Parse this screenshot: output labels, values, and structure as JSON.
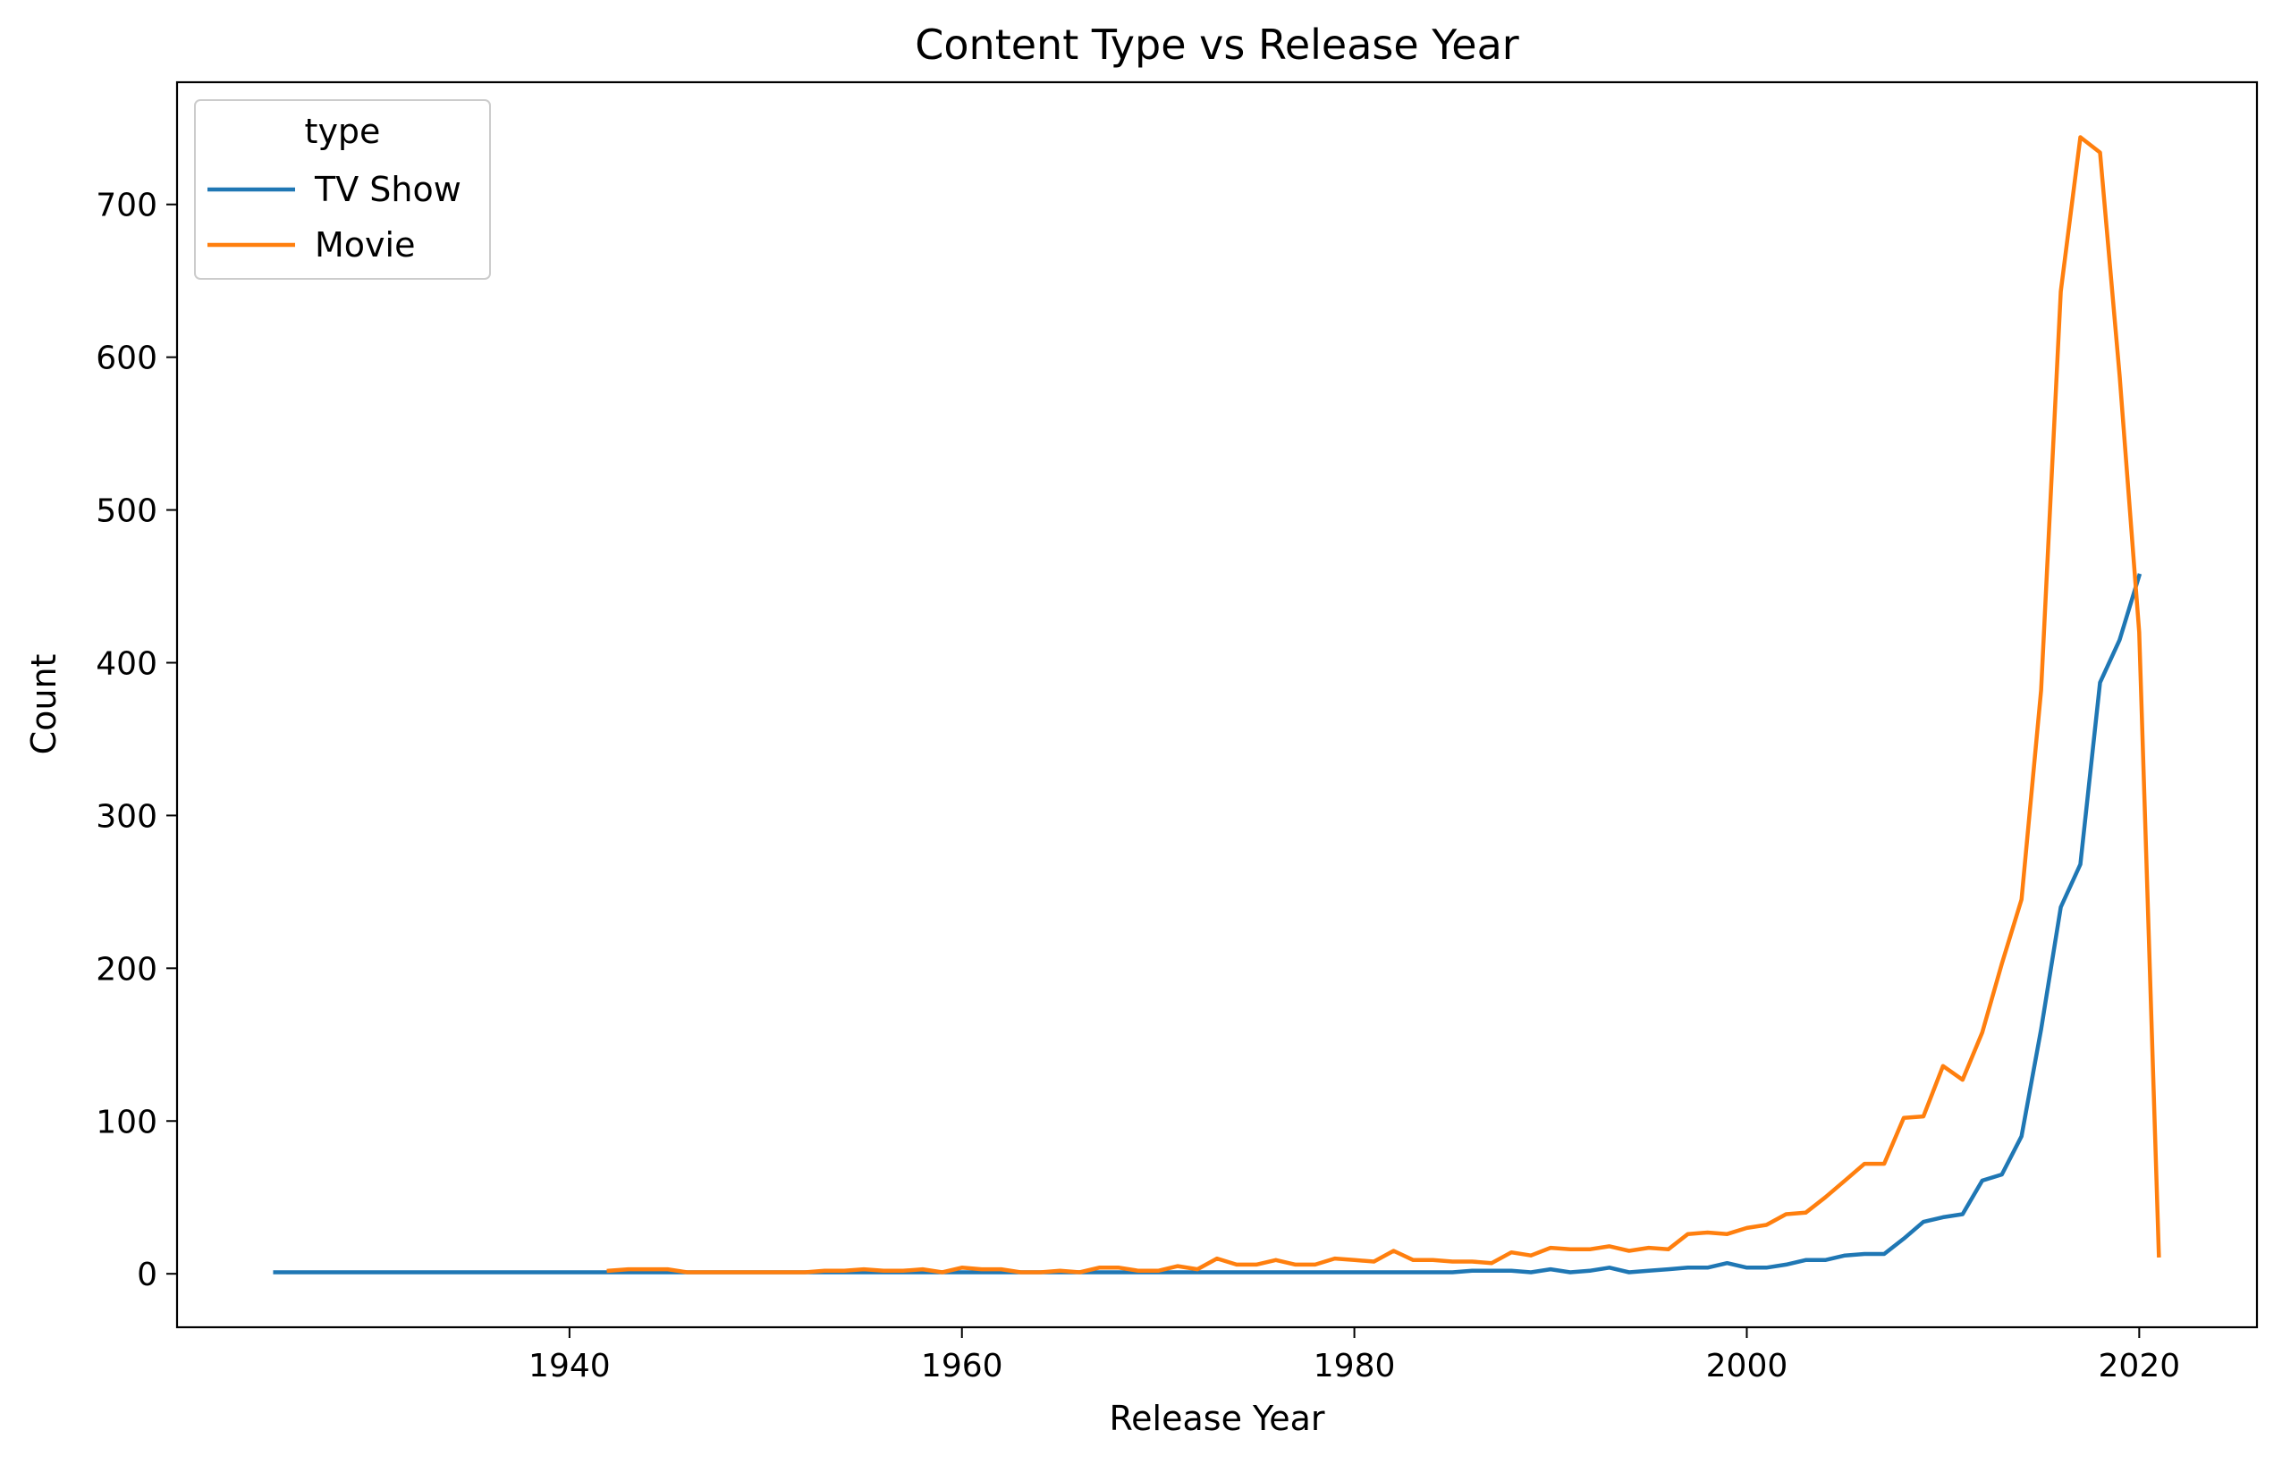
{
  "chart_data": {
    "type": "line",
    "title": "Content Type vs Release Year",
    "xlabel": "Release Year",
    "ylabel": "Count",
    "xlim": [
      1920,
      2026
    ],
    "ylim": [
      -35,
      780
    ],
    "xticks": [
      1940,
      1960,
      1980,
      2000,
      2020
    ],
    "yticks": [
      0,
      100,
      200,
      300,
      400,
      500,
      600,
      700
    ],
    "grid": false,
    "legend": {
      "title": "type",
      "placement": "top-left"
    },
    "series": [
      {
        "name": "TV Show",
        "color": "#1f77b4",
        "points": [
          [
            1925,
            1
          ],
          [
            1926,
            1
          ],
          [
            1927,
            1
          ],
          [
            1928,
            1
          ],
          [
            1929,
            1
          ],
          [
            1930,
            1
          ],
          [
            1931,
            1
          ],
          [
            1932,
            1
          ],
          [
            1933,
            1
          ],
          [
            1934,
            1
          ],
          [
            1935,
            1
          ],
          [
            1936,
            1
          ],
          [
            1937,
            1
          ],
          [
            1938,
            1
          ],
          [
            1939,
            1
          ],
          [
            1940,
            1
          ],
          [
            1941,
            1
          ],
          [
            1942,
            1
          ],
          [
            1943,
            1
          ],
          [
            1944,
            1
          ],
          [
            1945,
            1
          ],
          [
            1946,
            1
          ],
          [
            1947,
            1
          ],
          [
            1948,
            1
          ],
          [
            1949,
            1
          ],
          [
            1950,
            1
          ],
          [
            1951,
            1
          ],
          [
            1952,
            1
          ],
          [
            1953,
            1
          ],
          [
            1954,
            1
          ],
          [
            1955,
            1
          ],
          [
            1956,
            1
          ],
          [
            1957,
            1
          ],
          [
            1958,
            1
          ],
          [
            1959,
            1
          ],
          [
            1960,
            1
          ],
          [
            1961,
            1
          ],
          [
            1962,
            1
          ],
          [
            1963,
            1
          ],
          [
            1964,
            1
          ],
          [
            1965,
            1
          ],
          [
            1966,
            1
          ],
          [
            1967,
            1
          ],
          [
            1968,
            1
          ],
          [
            1969,
            1
          ],
          [
            1970,
            1
          ],
          [
            1971,
            1
          ],
          [
            1972,
            1
          ],
          [
            1973,
            1
          ],
          [
            1974,
            1
          ],
          [
            1975,
            1
          ],
          [
            1976,
            1
          ],
          [
            1977,
            1
          ],
          [
            1978,
            1
          ],
          [
            1979,
            1
          ],
          [
            1980,
            1
          ],
          [
            1981,
            1
          ],
          [
            1982,
            1
          ],
          [
            1983,
            1
          ],
          [
            1984,
            1
          ],
          [
            1985,
            1
          ],
          [
            1986,
            2
          ],
          [
            1987,
            2
          ],
          [
            1988,
            2
          ],
          [
            1989,
            1
          ],
          [
            1990,
            3
          ],
          [
            1991,
            1
          ],
          [
            1992,
            2
          ],
          [
            1993,
            4
          ],
          [
            1994,
            1
          ],
          [
            1995,
            2
          ],
          [
            1996,
            3
          ],
          [
            1997,
            4
          ],
          [
            1998,
            4
          ],
          [
            1999,
            7
          ],
          [
            2000,
            4
          ],
          [
            2001,
            4
          ],
          [
            2002,
            6
          ],
          [
            2003,
            9
          ],
          [
            2004,
            9
          ],
          [
            2005,
            12
          ],
          [
            2006,
            13
          ],
          [
            2007,
            13
          ],
          [
            2008,
            23
          ],
          [
            2009,
            34
          ],
          [
            2010,
            37
          ],
          [
            2011,
            39
          ],
          [
            2012,
            61
          ],
          [
            2013,
            65
          ],
          [
            2014,
            90
          ],
          [
            2015,
            160
          ],
          [
            2016,
            240
          ],
          [
            2017,
            268
          ],
          [
            2018,
            387
          ],
          [
            2019,
            415
          ],
          [
            2020,
            457
          ]
        ]
      },
      {
        "name": "Movie",
        "color": "#ff7f0e",
        "points": [
          [
            1942,
            2
          ],
          [
            1943,
            3
          ],
          [
            1944,
            3
          ],
          [
            1945,
            3
          ],
          [
            1946,
            1
          ],
          [
            1947,
            1
          ],
          [
            1948,
            1
          ],
          [
            1949,
            1
          ],
          [
            1950,
            1
          ],
          [
            1951,
            1
          ],
          [
            1952,
            1
          ],
          [
            1953,
            2
          ],
          [
            1954,
            2
          ],
          [
            1955,
            3
          ],
          [
            1956,
            2
          ],
          [
            1957,
            2
          ],
          [
            1958,
            3
          ],
          [
            1959,
            1
          ],
          [
            1960,
            4
          ],
          [
            1961,
            3
          ],
          [
            1962,
            3
          ],
          [
            1963,
            1
          ],
          [
            1964,
            1
          ],
          [
            1965,
            2
          ],
          [
            1966,
            1
          ],
          [
            1967,
            4
          ],
          [
            1968,
            4
          ],
          [
            1969,
            2
          ],
          [
            1970,
            2
          ],
          [
            1971,
            5
          ],
          [
            1972,
            3
          ],
          [
            1973,
            10
          ],
          [
            1974,
            6
          ],
          [
            1975,
            6
          ],
          [
            1976,
            9
          ],
          [
            1977,
            6
          ],
          [
            1978,
            6
          ],
          [
            1979,
            10
          ],
          [
            1980,
            9
          ],
          [
            1981,
            8
          ],
          [
            1982,
            15
          ],
          [
            1983,
            9
          ],
          [
            1984,
            9
          ],
          [
            1985,
            8
          ],
          [
            1986,
            8
          ],
          [
            1987,
            7
          ],
          [
            1988,
            14
          ],
          [
            1989,
            12
          ],
          [
            1990,
            17
          ],
          [
            1991,
            16
          ],
          [
            1992,
            16
          ],
          [
            1993,
            18
          ],
          [
            1994,
            15
          ],
          [
            1995,
            17
          ],
          [
            1996,
            16
          ],
          [
            1997,
            26
          ],
          [
            1998,
            27
          ],
          [
            1999,
            26
          ],
          [
            2000,
            30
          ],
          [
            2001,
            32
          ],
          [
            2002,
            39
          ],
          [
            2003,
            40
          ],
          [
            2004,
            50
          ],
          [
            2005,
            61
          ],
          [
            2006,
            72
          ],
          [
            2007,
            72
          ],
          [
            2008,
            102
          ],
          [
            2009,
            103
          ],
          [
            2010,
            136
          ],
          [
            2011,
            127
          ],
          [
            2012,
            158
          ],
          [
            2013,
            203
          ],
          [
            2014,
            245
          ],
          [
            2015,
            382
          ],
          [
            2016,
            643
          ],
          [
            2017,
            744
          ],
          [
            2018,
            734
          ],
          [
            2019,
            588
          ],
          [
            2020,
            420
          ],
          [
            2021,
            12
          ]
        ]
      }
    ]
  }
}
